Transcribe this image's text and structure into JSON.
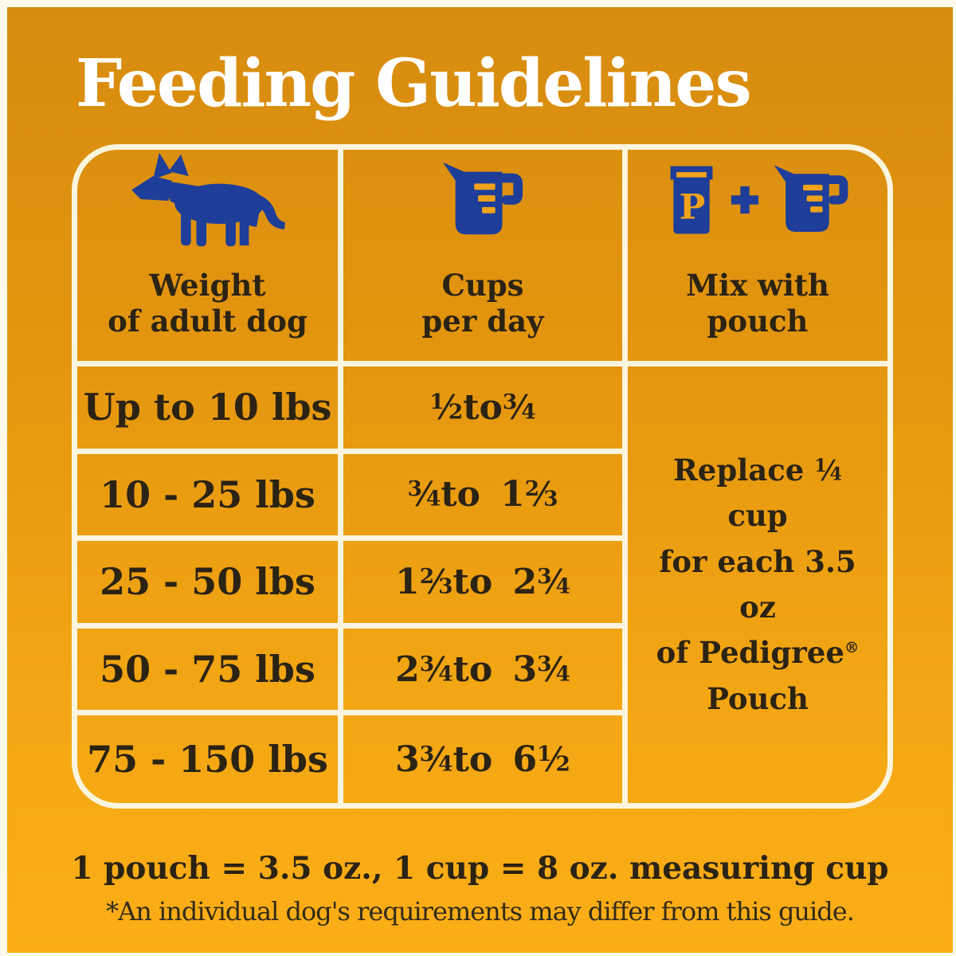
{
  "page": {
    "title": "Feeding Guidelines",
    "footer_bold": "1 pouch = 3.5 oz., 1 cup = 8 oz. measuring cup",
    "footer_note": "*An individual dog's requirements may differ from this guide."
  },
  "table": {
    "columns": [
      {
        "icon": "dog-icon",
        "label_lines": [
          "Weight",
          "of adult dog"
        ]
      },
      {
        "icon": "measuring-cup-icon",
        "label_lines": [
          "Cups",
          "per day"
        ]
      },
      {
        "icon": "pouch-plus-measuring-cup-icon",
        "label_lines": [
          "Mix with",
          "pouch"
        ]
      }
    ],
    "rows": [
      {
        "weight": "Up to 10 lbs",
        "cups": "½ to ¾"
      },
      {
        "weight": "10 - 25 lbs",
        "cups": "¾ to 1 ⅔"
      },
      {
        "weight": "25 - 50 lbs",
        "cups": "1 ⅔ to 2 ¾"
      },
      {
        "weight": "50 - 75 lbs",
        "cups": "2 ¾ to 3 ¾"
      },
      {
        "weight": "75 - 150 lbs",
        "cups": "3 ¾ to 6 ½"
      }
    ],
    "mix_note_lines": [
      "Replace ¼ cup",
      "for each 3.5 oz",
      "of Pedigree®",
      "Pouch"
    ],
    "pouch_letter": "P"
  },
  "colors": {
    "background_top": "#d78c11",
    "background_bottom": "#fbae16",
    "icon_blue": "#1e3e99",
    "icon_accent_yellow": "#f0a21a",
    "line_cream": "#fbf5df",
    "text_dark": "#2b2314",
    "title_white": "#ffffff"
  }
}
